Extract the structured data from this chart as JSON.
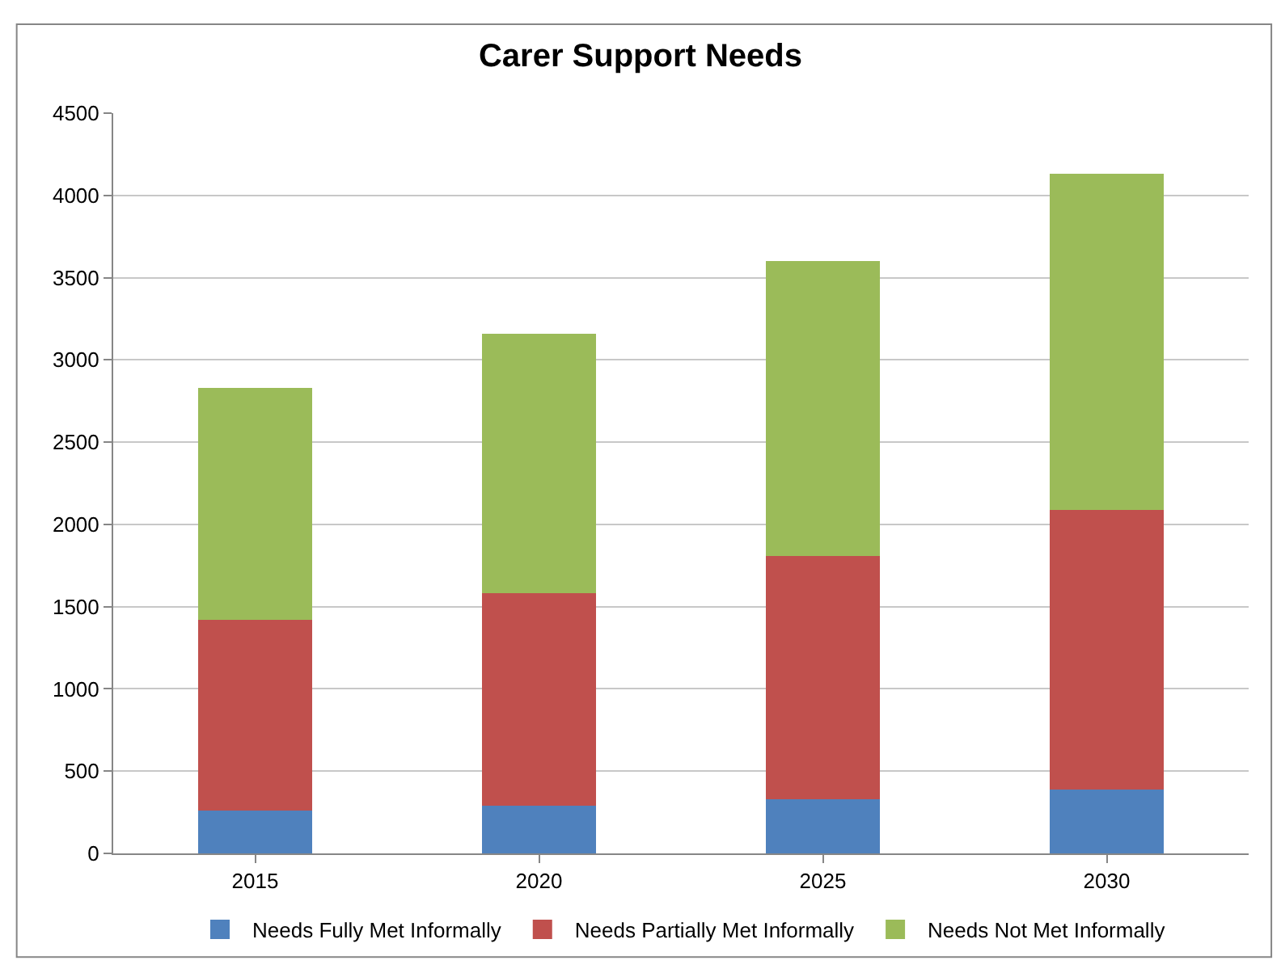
{
  "chart_data": {
    "type": "bar",
    "title": "Carer Support Needs",
    "stacked": true,
    "categories": [
      "2015",
      "2020",
      "2025",
      "2030"
    ],
    "series": [
      {
        "name": "Needs Fully Met Informally",
        "color": "#4f81bd",
        "values": [
          260,
          290,
          330,
          390
        ]
      },
      {
        "name": "Needs Partially Met Informally",
        "color": "#c0504d",
        "values": [
          1160,
          1290,
          1480,
          1700
        ]
      },
      {
        "name": "Needs Not Met Informally",
        "color": "#9bbb59",
        "values": [
          1410,
          1580,
          1790,
          2040
        ]
      }
    ],
    "ylim": [
      0,
      4500
    ],
    "yticks": [
      0,
      500,
      1000,
      1500,
      2000,
      2500,
      3000,
      3500,
      4000,
      4500
    ],
    "grid": "y",
    "legend": "bottom"
  }
}
